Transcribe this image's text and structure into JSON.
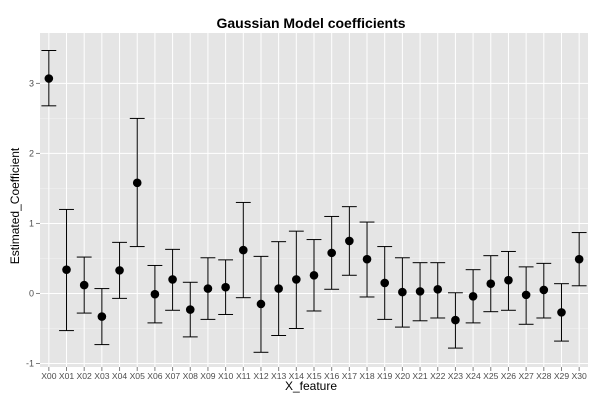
{
  "chart_data": {
    "type": "scatter",
    "title": "Gaussian Model coefficients",
    "xlabel": "X_feature",
    "ylabel": "Estimated_Coefficient",
    "ylim": [
      -1.05,
      3.72
    ],
    "y_ticks": [
      -1,
      0,
      1,
      2,
      3
    ],
    "y_tick_labels": [
      "-1",
      "0",
      "1",
      "2",
      "3"
    ],
    "grid": true,
    "background": "#e5e5e5",
    "grid_color": "#ffffff",
    "point_color": "#000000",
    "categories": [
      "X00",
      "X01",
      "X02",
      "X03",
      "X04",
      "X05",
      "X06",
      "X07",
      "X08",
      "X09",
      "X10",
      "X11",
      "X12",
      "X13",
      "X14",
      "X15",
      "X16",
      "X17",
      "X18",
      "X19",
      "X20",
      "X21",
      "X22",
      "X23",
      "X24",
      "X25",
      "X26",
      "X27",
      "X28",
      "X29",
      "X30"
    ],
    "values": [
      3.07,
      0.34,
      0.12,
      -0.33,
      0.33,
      1.58,
      -0.01,
      0.2,
      -0.23,
      0.07,
      0.09,
      0.62,
      -0.15,
      0.07,
      0.2,
      0.26,
      0.58,
      0.75,
      0.49,
      0.15,
      0.02,
      0.03,
      0.06,
      -0.38,
      -0.04,
      0.14,
      0.19,
      -0.02,
      0.05,
      -0.27,
      0.49
    ],
    "lower": [
      2.68,
      -0.53,
      -0.28,
      -0.73,
      -0.07,
      0.67,
      -0.42,
      -0.24,
      -0.62,
      -0.37,
      -0.3,
      -0.06,
      -0.84,
      -0.6,
      -0.5,
      -0.25,
      0.06,
      0.26,
      -0.05,
      -0.37,
      -0.48,
      -0.39,
      -0.35,
      -0.78,
      -0.42,
      -0.26,
      -0.24,
      -0.44,
      -0.35,
      -0.68,
      0.11
    ],
    "upper": [
      3.47,
      1.2,
      0.52,
      0.07,
      0.73,
      2.5,
      0.4,
      0.63,
      0.16,
      0.51,
      0.48,
      1.3,
      0.53,
      0.74,
      0.89,
      0.77,
      1.1,
      1.24,
      1.02,
      0.67,
      0.51,
      0.44,
      0.44,
      0.01,
      0.34,
      0.54,
      0.6,
      0.38,
      0.43,
      0.14,
      0.87
    ]
  }
}
